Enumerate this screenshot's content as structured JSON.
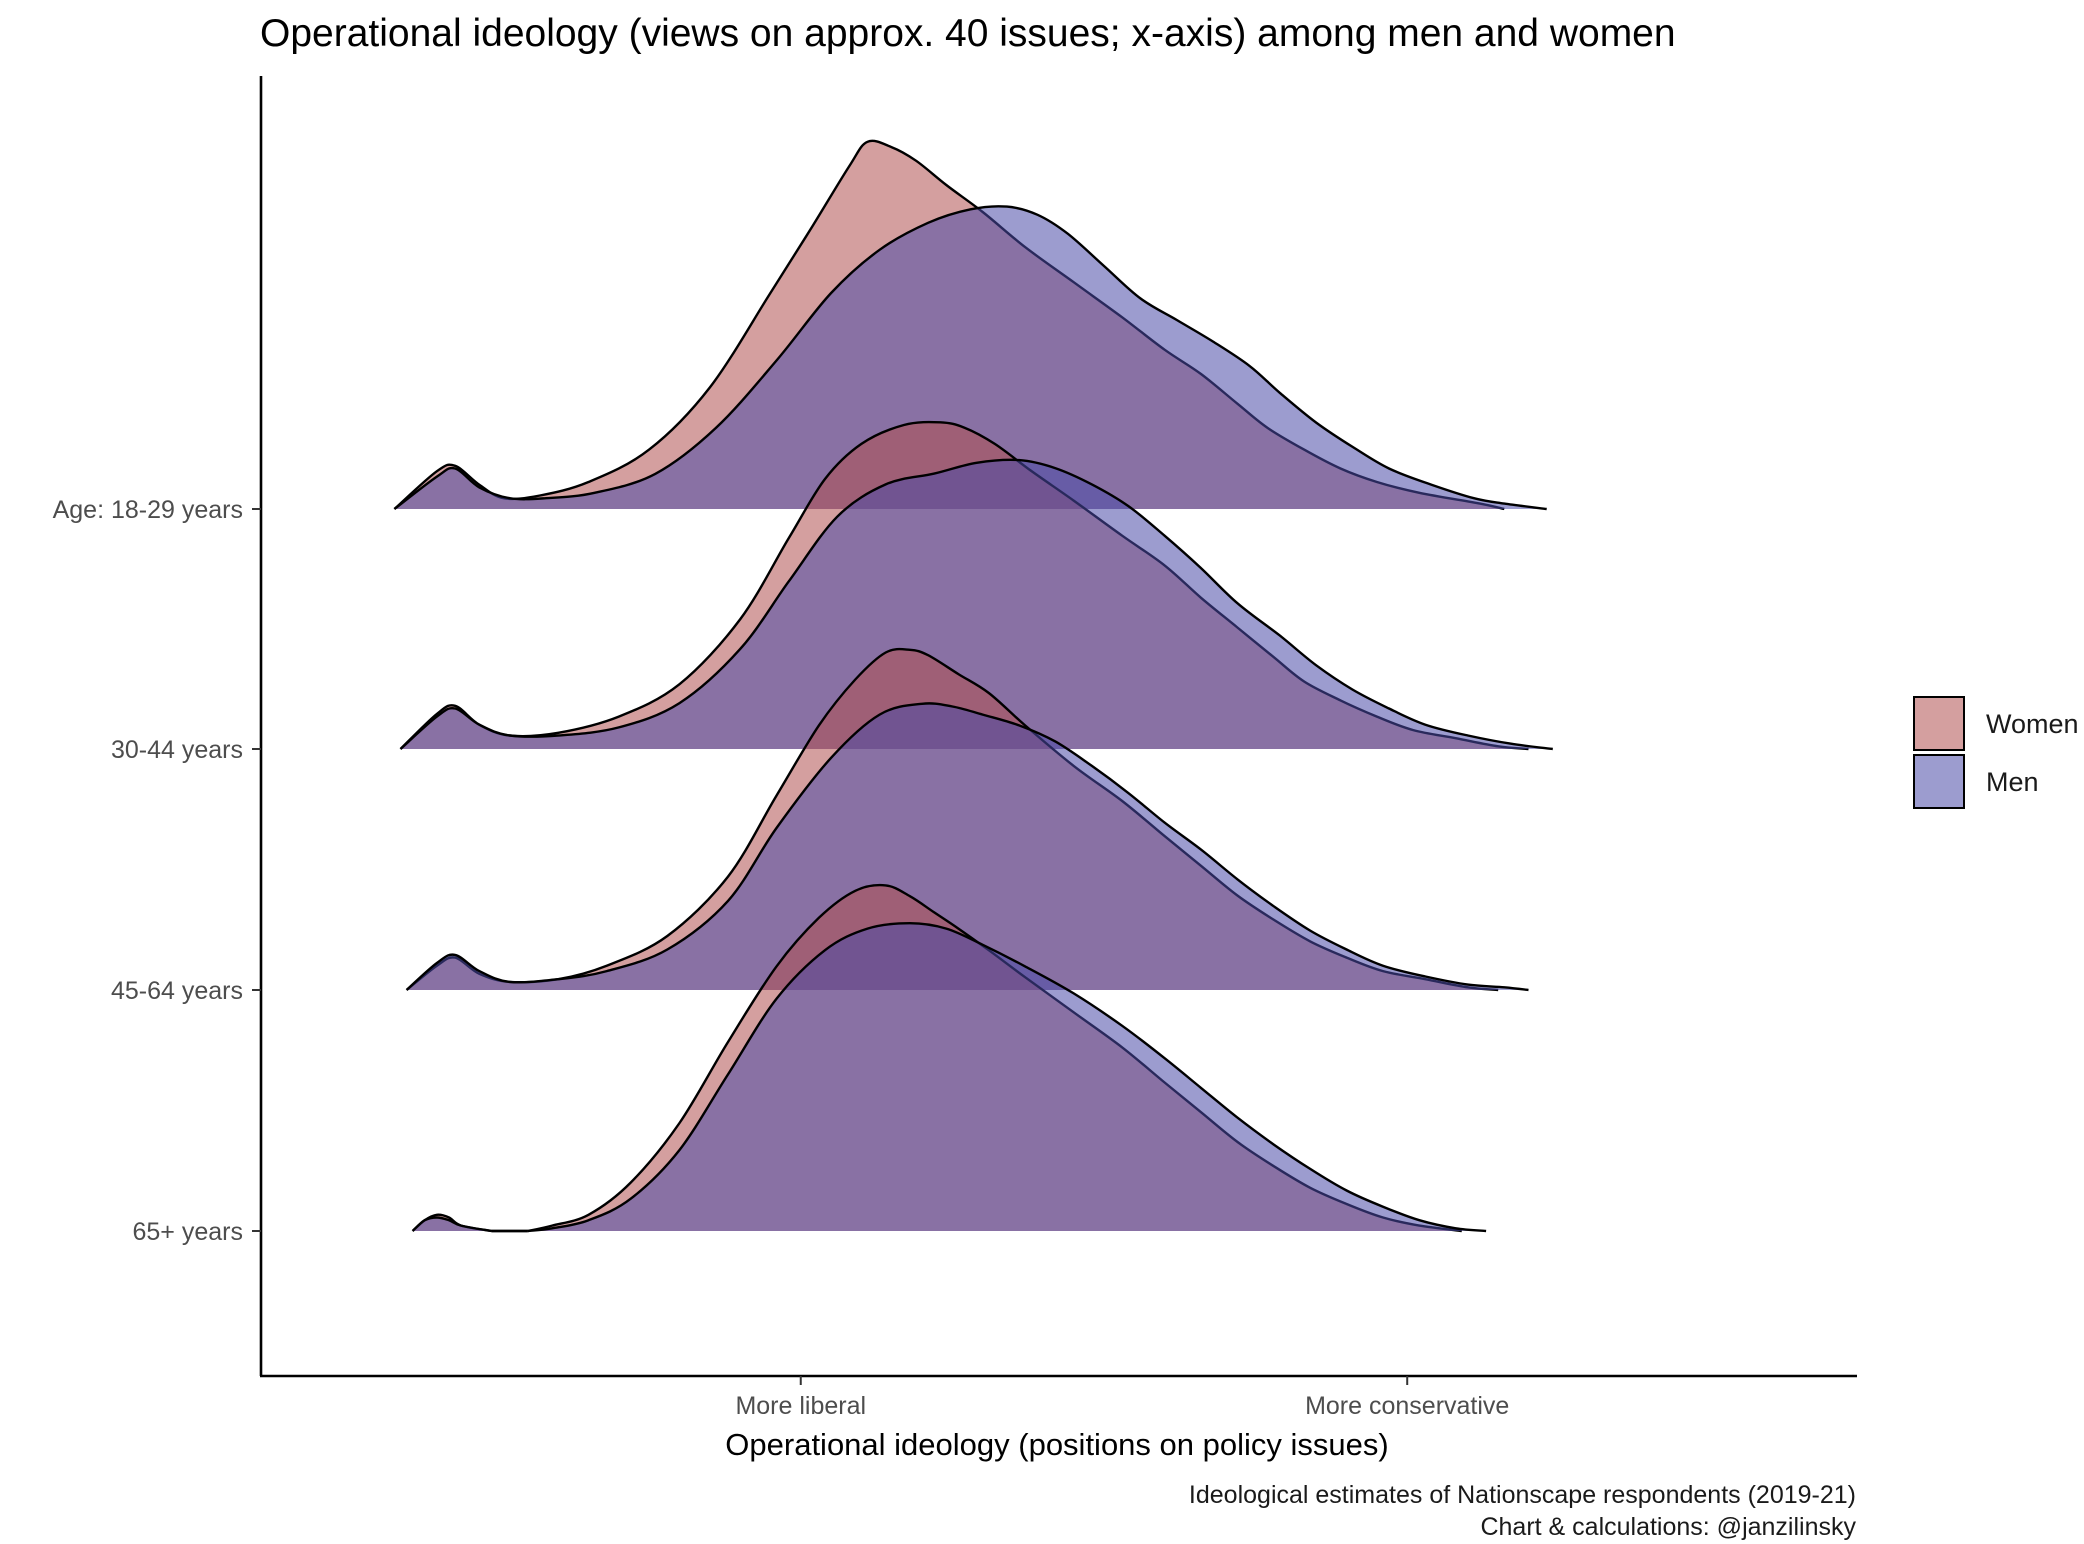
{
  "chart_data": {
    "type": "ridgeline density",
    "title": "Operational ideology (views on approx. 40 issues; x-axis) among men and women",
    "xlabel": "Operational ideology (positions on policy issues)",
    "ylabel": "",
    "x_tick_labels": [
      "More liberal",
      "More conservative"
    ],
    "x_ticks": [
      0,
      1
    ],
    "xlim": [
      -0.89,
      1.74
    ],
    "categories": [
      "Age: 18-29 years",
      "30-44 years",
      "45-64 years",
      "65+ years"
    ],
    "caption": [
      "Ideological estimates of Nationscape respondents (2019-21)",
      "Chart & calculations: @janzilinsky"
    ],
    "legend": {
      "position": "right",
      "entries": [
        {
          "label": "Women",
          "color": "#b05050"
        },
        {
          "label": "Men",
          "color": "#4a4aa8"
        }
      ]
    },
    "grid": false,
    "fill_opacity": 0.55,
    "series": [
      {
        "name": "Women",
        "color": "#b05050",
        "groups": [
          {
            "category": "Age: 18-29 years",
            "x": [
              -0.67,
              -0.6,
              -0.57,
              -0.53,
              -0.49,
              -0.43,
              -0.35,
              -0.25,
              -0.15,
              -0.05,
              0.02,
              0.08,
              0.11,
              0.15,
              0.19,
              0.24,
              0.3,
              0.37,
              0.45,
              0.53,
              0.6,
              0.66,
              0.72,
              0.77,
              0.83,
              0.89,
              0.95,
              1.02,
              1.12,
              1.16
            ],
            "y": [
              0.0,
              0.14,
              0.16,
              0.09,
              0.04,
              0.05,
              0.1,
              0.22,
              0.45,
              0.8,
              1.05,
              1.27,
              1.36,
              1.34,
              1.29,
              1.2,
              1.1,
              0.97,
              0.84,
              0.71,
              0.59,
              0.5,
              0.39,
              0.3,
              0.22,
              0.15,
              0.1,
              0.06,
              0.02,
              0.0
            ]
          },
          {
            "category": "30-44 years",
            "x": [
              -0.66,
              -0.6,
              -0.57,
              -0.53,
              -0.48,
              -0.4,
              -0.3,
              -0.2,
              -0.1,
              -0.02,
              0.04,
              0.1,
              0.17,
              0.23,
              0.27,
              0.32,
              0.38,
              0.45,
              0.53,
              0.6,
              0.66,
              0.72,
              0.78,
              0.83,
              0.89,
              0.95,
              1.01,
              1.08,
              1.15,
              1.2
            ],
            "y": [
              0.0,
              0.13,
              0.16,
              0.09,
              0.05,
              0.06,
              0.12,
              0.24,
              0.48,
              0.78,
              1.0,
              1.13,
              1.2,
              1.21,
              1.19,
              1.13,
              1.03,
              0.92,
              0.79,
              0.68,
              0.56,
              0.45,
              0.34,
              0.25,
              0.18,
              0.12,
              0.07,
              0.04,
              0.01,
              0.0
            ]
          },
          {
            "category": "45-64 years",
            "x": [
              -0.65,
              -0.6,
              -0.57,
              -0.53,
              -0.48,
              -0.4,
              -0.32,
              -0.22,
              -0.12,
              -0.04,
              0.03,
              0.09,
              0.14,
              0.18,
              0.21,
              0.26,
              0.31,
              0.37,
              0.45,
              0.53,
              0.6,
              0.66,
              0.72,
              0.78,
              0.84,
              0.9,
              0.96,
              1.03,
              1.1,
              1.15
            ],
            "y": [
              0.0,
              0.09,
              0.12,
              0.06,
              0.03,
              0.04,
              0.09,
              0.2,
              0.42,
              0.72,
              0.98,
              1.15,
              1.25,
              1.26,
              1.24,
              1.17,
              1.1,
              0.98,
              0.83,
              0.7,
              0.57,
              0.46,
              0.35,
              0.26,
              0.18,
              0.12,
              0.07,
              0.04,
              0.01,
              0.0
            ]
          },
          {
            "category": "65+ years",
            "x": [
              -0.64,
              -0.62,
              -0.6,
              -0.58,
              -0.56,
              -0.51,
              -0.45,
              -0.41,
              -0.35,
              -0.28,
              -0.2,
              -0.12,
              -0.04,
              0.03,
              0.09,
              0.14,
              0.18,
              0.22,
              0.26,
              0.31,
              0.37,
              0.45,
              0.53,
              0.6,
              0.66,
              0.72,
              0.78,
              0.84,
              0.9,
              0.96,
              1.02,
              1.09
            ],
            "y": [
              0.0,
              0.04,
              0.06,
              0.05,
              0.02,
              0.0,
              0.0,
              0.02,
              0.06,
              0.18,
              0.4,
              0.7,
              0.98,
              1.16,
              1.26,
              1.28,
              1.24,
              1.18,
              1.12,
              1.04,
              0.94,
              0.81,
              0.68,
              0.55,
              0.44,
              0.33,
              0.24,
              0.16,
              0.1,
              0.05,
              0.02,
              0.0
            ]
          }
        ]
      },
      {
        "name": "Men",
        "color": "#4a4aa8",
        "groups": [
          {
            "category": "Age: 18-29 years",
            "x": [
              -0.67,
              -0.6,
              -0.57,
              -0.53,
              -0.48,
              -0.42,
              -0.34,
              -0.24,
              -0.14,
              -0.04,
              0.05,
              0.13,
              0.21,
              0.28,
              0.34,
              0.39,
              0.44,
              0.5,
              0.56,
              0.62,
              0.68,
              0.74,
              0.79,
              0.85,
              0.91,
              0.97,
              1.04,
              1.11,
              1.16,
              1.23
            ],
            "y": [
              0.0,
              0.12,
              0.15,
              0.08,
              0.04,
              0.04,
              0.06,
              0.13,
              0.3,
              0.55,
              0.8,
              0.96,
              1.06,
              1.11,
              1.12,
              1.09,
              1.02,
              0.9,
              0.78,
              0.7,
              0.62,
              0.53,
              0.43,
              0.32,
              0.23,
              0.15,
              0.09,
              0.04,
              0.02,
              0.0
            ]
          },
          {
            "category": "30-44 years",
            "x": [
              -0.66,
              -0.6,
              -0.57,
              -0.53,
              -0.48,
              -0.4,
              -0.3,
              -0.2,
              -0.1,
              -0.02,
              0.06,
              0.14,
              0.22,
              0.29,
              0.36,
              0.42,
              0.48,
              0.54,
              0.6,
              0.66,
              0.72,
              0.79,
              0.85,
              0.91,
              0.97,
              1.03,
              1.1,
              1.17,
              1.24
            ],
            "y": [
              0.0,
              0.12,
              0.15,
              0.09,
              0.05,
              0.05,
              0.08,
              0.17,
              0.37,
              0.62,
              0.86,
              0.98,
              1.02,
              1.06,
              1.07,
              1.04,
              0.98,
              0.9,
              0.79,
              0.67,
              0.54,
              0.42,
              0.31,
              0.22,
              0.15,
              0.09,
              0.05,
              0.02,
              0.0
            ]
          },
          {
            "category": "45-64 years",
            "x": [
              -0.65,
              -0.6,
              -0.57,
              -0.53,
              -0.48,
              -0.4,
              -0.32,
              -0.22,
              -0.12,
              -0.04,
              0.05,
              0.13,
              0.2,
              0.25,
              0.3,
              0.36,
              0.42,
              0.48,
              0.54,
              0.6,
              0.66,
              0.72,
              0.78,
              0.84,
              0.9,
              0.96,
              1.03,
              1.1,
              1.16,
              1.2
            ],
            "y": [
              0.0,
              0.1,
              0.13,
              0.07,
              0.03,
              0.04,
              0.07,
              0.15,
              0.33,
              0.6,
              0.86,
              1.02,
              1.06,
              1.05,
              1.02,
              0.98,
              0.92,
              0.83,
              0.73,
              0.62,
              0.52,
              0.41,
              0.31,
              0.22,
              0.15,
              0.09,
              0.05,
              0.02,
              0.01,
              0.0
            ]
          },
          {
            "category": "65+ years",
            "x": [
              -0.64,
              -0.62,
              -0.6,
              -0.58,
              -0.56,
              -0.51,
              -0.45,
              -0.41,
              -0.35,
              -0.28,
              -0.2,
              -0.12,
              -0.04,
              0.04,
              0.11,
              0.18,
              0.24,
              0.3,
              0.37,
              0.45,
              0.53,
              0.6,
              0.66,
              0.72,
              0.78,
              0.84,
              0.9,
              0.96,
              1.02,
              1.08,
              1.13
            ],
            "y": [
              0.0,
              0.04,
              0.05,
              0.04,
              0.02,
              0.0,
              0.0,
              0.01,
              0.04,
              0.12,
              0.3,
              0.58,
              0.86,
              1.04,
              1.12,
              1.14,
              1.12,
              1.06,
              0.98,
              0.88,
              0.76,
              0.64,
              0.53,
              0.42,
              0.32,
              0.23,
              0.15,
              0.09,
              0.04,
              0.01,
              0.0
            ]
          }
        ]
      }
    ]
  }
}
